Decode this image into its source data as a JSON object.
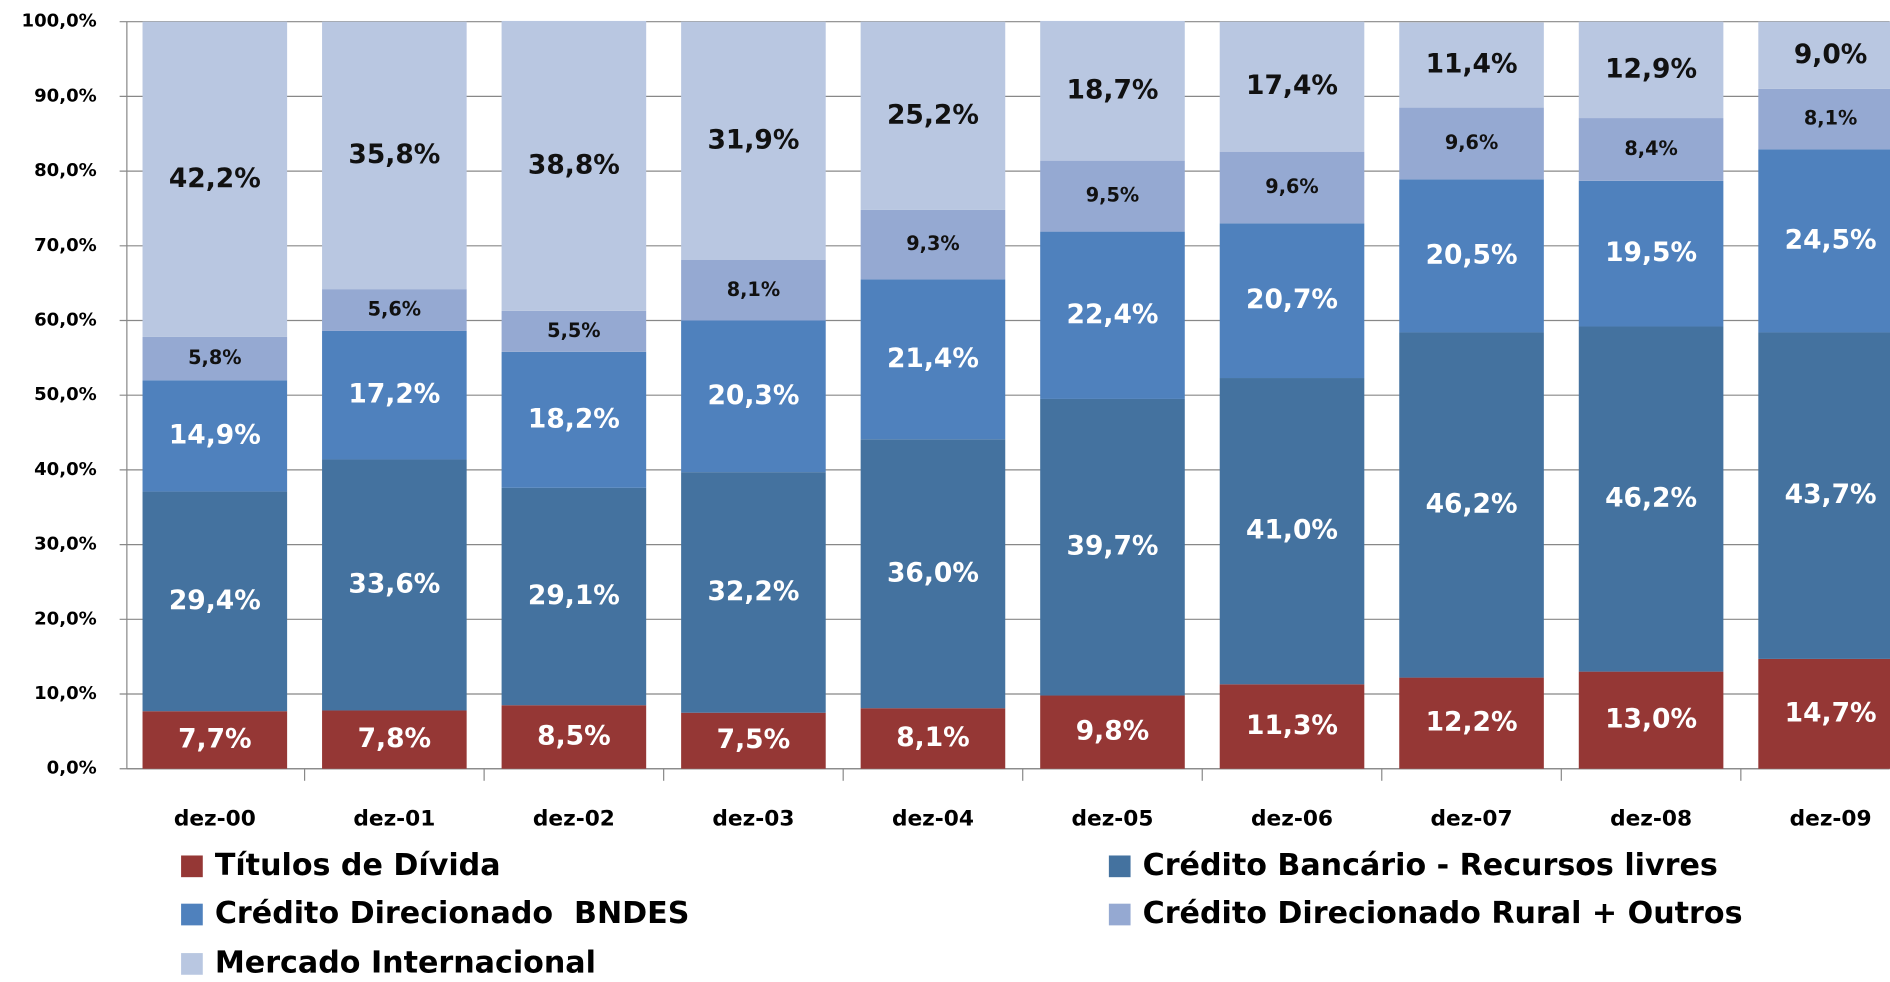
{
  "chart_data": {
    "type": "stacked_bar",
    "categories": [
      "dez-00",
      "dez-01",
      "dez-02",
      "dez-03",
      "dez-04",
      "dez-05",
      "dez-06",
      "dez-07",
      "dez-08",
      "dez-09"
    ],
    "series": [
      {
        "name": "Títulos de Dívida",
        "color": "#953735",
        "values": [
          7.7,
          7.8,
          8.5,
          7.5,
          8.1,
          9.8,
          11.3,
          12.2,
          13.0,
          14.7
        ],
        "value_labels": [
          "7,7%",
          "7,8%",
          "8,5%",
          "7,5%",
          "8,1%",
          "9,8%",
          "11,3%",
          "12,2%",
          "13,0%",
          "14,7%"
        ]
      },
      {
        "name": "Crédito Bancário - Recursos livres",
        "color": "#44729f",
        "values": [
          29.4,
          33.6,
          29.1,
          32.2,
          36.0,
          39.7,
          41.0,
          46.2,
          46.2,
          43.7
        ],
        "value_labels": [
          "29,4%",
          "33,6%",
          "29,1%",
          "32,2%",
          "36,0%",
          "39,7%",
          "41,0%",
          "46,2%",
          "46,2%",
          "43,7%"
        ]
      },
      {
        "name": "Crédito Direcionado  BNDES",
        "color": "#4f81bd",
        "values": [
          14.9,
          17.2,
          18.2,
          20.3,
          21.4,
          22.4,
          20.7,
          20.5,
          19.5,
          24.5
        ],
        "value_labels": [
          "14,9%",
          "17,2%",
          "18,2%",
          "20,3%",
          "21,4%",
          "22,4%",
          "20,7%",
          "20,5%",
          "19,5%",
          "24,5%"
        ]
      },
      {
        "name": "Crédito Direcionado Rural + Outros",
        "color": "#95a9d2",
        "values": [
          5.8,
          5.6,
          5.5,
          8.1,
          9.3,
          9.5,
          9.6,
          9.6,
          8.4,
          8.1
        ],
        "value_labels": [
          "5,8%",
          "5,6%",
          "5,5%",
          "8,1%",
          "9,3%",
          "9,5%",
          "9,6%",
          "9,6%",
          "8,4%",
          "8,1%"
        ]
      },
      {
        "name": "Mercado Internacional",
        "color": "#b9c7e1",
        "values": [
          42.2,
          35.8,
          38.8,
          31.9,
          25.2,
          18.7,
          17.4,
          11.4,
          12.9,
          9.0
        ],
        "value_labels": [
          "42,2%",
          "35,8%",
          "38,8%",
          "31,9%",
          "25,2%",
          "18,7%",
          "17,4%",
          "11,4%",
          "12,9%",
          "9,0%"
        ]
      }
    ],
    "ylim": [
      0,
      100
    ],
    "yticks": [
      {
        "value": 0,
        "label": "0,0%"
      },
      {
        "value": 10,
        "label": "10,0%"
      },
      {
        "value": 20,
        "label": "20,0%"
      },
      {
        "value": 30,
        "label": "30,0%"
      },
      {
        "value": 40,
        "label": "40,0%"
      },
      {
        "value": 50,
        "label": "50,0%"
      },
      {
        "value": 60,
        "label": "60,0%"
      },
      {
        "value": 70,
        "label": "70,0%"
      },
      {
        "value": 80,
        "label": "80,0%"
      },
      {
        "value": 90,
        "label": "90,0%"
      },
      {
        "value": 100,
        "label": "100,0%"
      }
    ],
    "legend": "bottom"
  }
}
